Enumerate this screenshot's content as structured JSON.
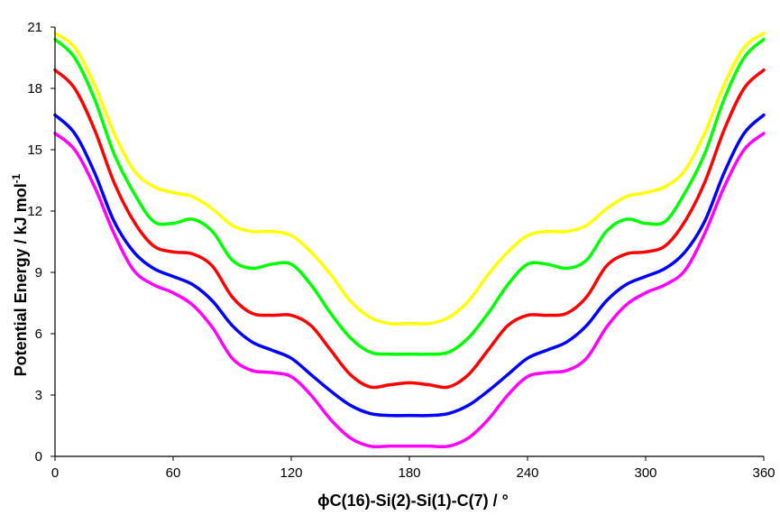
{
  "chart_data": {
    "type": "line",
    "title": "",
    "xlabel": "ϕC(16)-Si(2)-Si(1)-C(7) /  °",
    "ylabel_main": "Potential Energy / kJ mol",
    "ylabel_sup": "-1",
    "xlim": [
      0,
      360
    ],
    "ylim": [
      0,
      21
    ],
    "xticks": [
      0,
      60,
      120,
      180,
      240,
      300,
      360
    ],
    "yticks": [
      0,
      3,
      6,
      9,
      12,
      15,
      18,
      21
    ],
    "grid": false,
    "legend": "none",
    "x": [
      0,
      10,
      20,
      30,
      40,
      50,
      60,
      70,
      80,
      90,
      100,
      110,
      120,
      130,
      140,
      150,
      160,
      170,
      180,
      190,
      200,
      210,
      220,
      230,
      240,
      250,
      260,
      270,
      280,
      290,
      300,
      310,
      320,
      330,
      340,
      350,
      360
    ],
    "series": [
      {
        "color": "#ffff00",
        "values": [
          20.7,
          20.0,
          18.2,
          15.8,
          14.0,
          13.2,
          12.9,
          12.7,
          12.1,
          11.3,
          11.0,
          11.0,
          10.8,
          10.0,
          8.9,
          7.6,
          6.8,
          6.5,
          6.5,
          6.5,
          6.8,
          7.6,
          8.9,
          10.0,
          10.8,
          11.0,
          11.0,
          11.3,
          12.1,
          12.7,
          12.9,
          13.2,
          14.0,
          15.8,
          18.2,
          20.0,
          20.7
        ]
      },
      {
        "color": "#00ff00",
        "values": [
          20.4,
          19.5,
          17.5,
          14.8,
          12.9,
          11.5,
          11.4,
          11.6,
          11.0,
          9.6,
          9.2,
          9.4,
          9.4,
          8.4,
          7.0,
          5.8,
          5.1,
          5.0,
          5.0,
          5.0,
          5.1,
          5.8,
          7.0,
          8.4,
          9.4,
          9.4,
          9.2,
          9.6,
          11.0,
          11.6,
          11.4,
          11.5,
          12.9,
          14.8,
          17.5,
          19.5,
          20.4
        ]
      },
      {
        "color": "#ff0000",
        "values": [
          18.9,
          18.0,
          16.0,
          13.4,
          11.5,
          10.3,
          10.0,
          9.9,
          9.3,
          7.8,
          7.0,
          6.9,
          6.9,
          6.4,
          5.2,
          4.0,
          3.4,
          3.5,
          3.6,
          3.5,
          3.4,
          4.0,
          5.2,
          6.4,
          6.9,
          6.9,
          7.0,
          7.8,
          9.3,
          9.9,
          10.0,
          10.3,
          11.5,
          13.4,
          16.0,
          18.0,
          18.9
        ]
      },
      {
        "color": "#0000ff",
        "values": [
          16.7,
          15.8,
          13.9,
          11.5,
          10.0,
          9.2,
          8.8,
          8.4,
          7.6,
          6.4,
          5.6,
          5.2,
          4.8,
          4.0,
          3.2,
          2.5,
          2.1,
          2.0,
          2.0,
          2.0,
          2.1,
          2.5,
          3.2,
          4.0,
          4.8,
          5.2,
          5.6,
          6.4,
          7.6,
          8.4,
          8.8,
          9.2,
          10.0,
          11.5,
          13.9,
          15.8,
          16.7
        ]
      },
      {
        "color": "#ff00ff",
        "values": [
          15.8,
          15.0,
          13.2,
          10.9,
          9.1,
          8.4,
          8.0,
          7.4,
          6.3,
          4.8,
          4.2,
          4.1,
          3.9,
          3.0,
          1.8,
          0.9,
          0.5,
          0.5,
          0.5,
          0.5,
          0.5,
          0.9,
          1.8,
          3.0,
          3.9,
          4.1,
          4.2,
          4.8,
          6.3,
          7.4,
          8.0,
          8.4,
          9.1,
          10.9,
          13.2,
          15.0,
          15.8
        ]
      }
    ]
  }
}
